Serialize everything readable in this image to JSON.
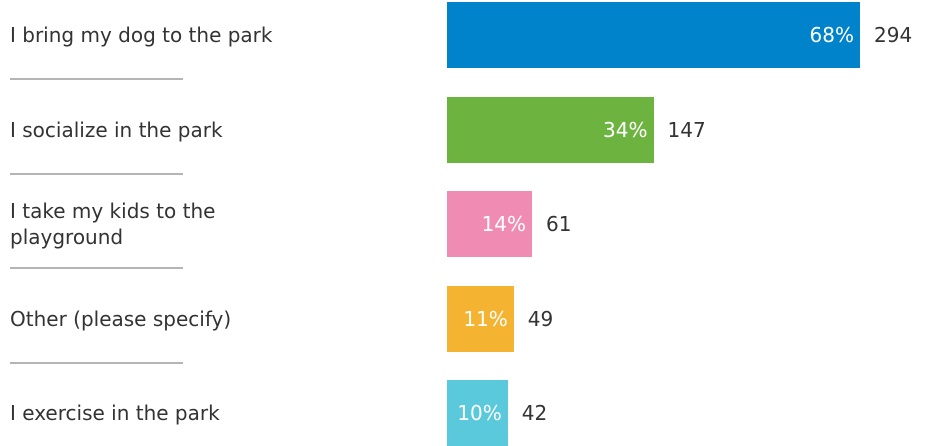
{
  "chart_data": {
    "type": "bar",
    "orientation": "horizontal",
    "categories": [
      "I bring my dog to the park",
      "I socialize in the park",
      "I take my kids to the playground",
      "Other (please specify)",
      "I exercise in the park"
    ],
    "values": [
      68,
      34,
      14,
      11,
      10
    ],
    "value_labels": [
      "68%",
      "34%",
      "14%",
      "11%",
      "10%"
    ],
    "counts": [
      294,
      147,
      61,
      49,
      42
    ],
    "colors": [
      "#0083ca",
      "#6db33f",
      "#f08cb4",
      "#f4b331",
      "#5bc9dc"
    ]
  }
}
